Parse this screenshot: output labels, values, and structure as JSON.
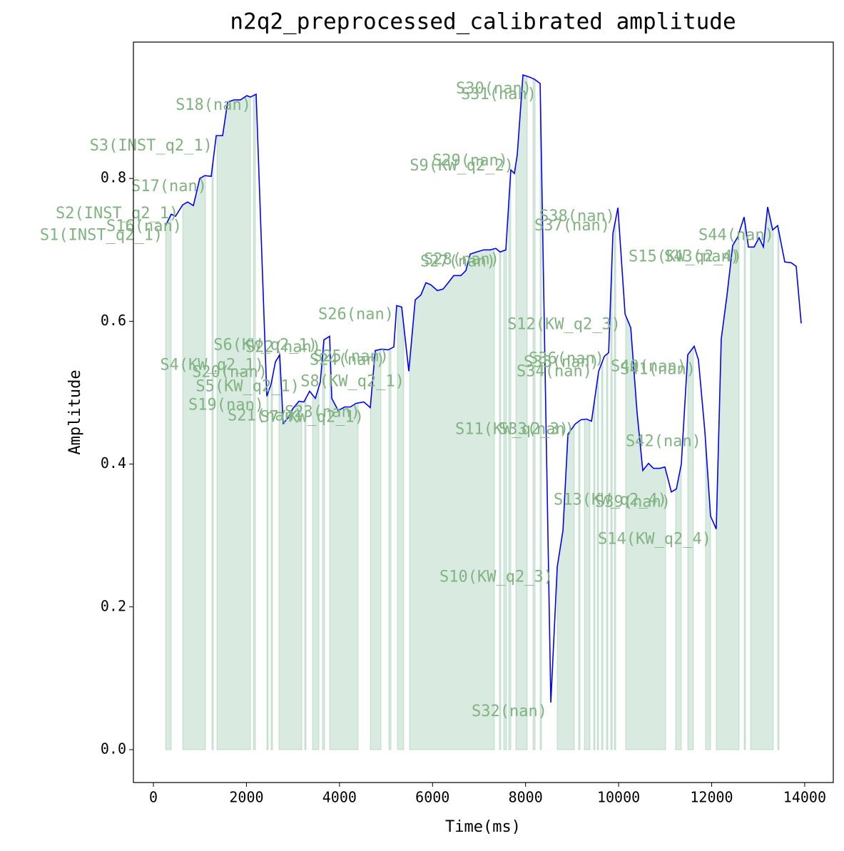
{
  "chart_data": {
    "type": "line",
    "title": "n2q2_preprocessed_calibrated amplitude",
    "x_label": "Time(ms)",
    "y_label": "Amplitude",
    "color": "#0000ff",
    "span_color": "#2e8b57",
    "annotation_color": "#80b380",
    "xlim": [
      -430,
      14615
    ],
    "ylim": [
      -0.046,
      0.991
    ],
    "xticks": [
      0,
      2000,
      4000,
      6000,
      8000,
      10000,
      12000,
      14000
    ],
    "yticks": [
      {
        "value": 0,
        "label": "0.0"
      },
      0.2,
      0.4,
      0.6,
      0.8
    ],
    "x": [
      261,
      383,
      475,
      629,
      736,
      859,
      997,
      1104,
      1242,
      1350,
      1488,
      1595,
      1733,
      1871,
      2009,
      2086,
      2208,
      2438,
      2530,
      2622,
      2714,
      2791,
      2898,
      2990,
      3128,
      3235,
      3358,
      3481,
      3588,
      3665,
      3788,
      3834,
      3972,
      4110,
      4233,
      4355,
      4524,
      4662,
      4769,
      4907,
      5045,
      5168,
      5229,
      5337,
      5490,
      5628,
      5751,
      5858,
      5965,
      6103,
      6226,
      6349,
      6456,
      6609,
      6717,
      6809,
      6947,
      7100,
      7238,
      7361,
      7453,
      7576,
      7683,
      7760,
      7821,
      7944,
      8082,
      8190,
      8313,
      8543,
      8681,
      8804,
      8911,
      9065,
      9188,
      9310,
      9418,
      9571,
      9694,
      9786,
      9878,
      9985,
      10139,
      10261,
      10397,
      10520,
      10643,
      10750,
      10888,
      10995,
      11133,
      11241,
      11348,
      11486,
      11624,
      11716,
      11854,
      11977,
      12099,
      12206,
      12329,
      12452,
      12560,
      12698,
      12790,
      12912,
      13020,
      13112,
      13204,
      13311,
      13419,
      13572,
      13710,
      13817,
      13925
    ],
    "values": [
      0.734,
      0.75,
      0.747,
      0.763,
      0.767,
      0.762,
      0.8,
      0.804,
      0.803,
      0.86,
      0.86,
      0.907,
      0.91,
      0.91,
      0.916,
      0.914,
      0.918,
      0.495,
      0.512,
      0.543,
      0.553,
      0.457,
      0.465,
      0.477,
      0.488,
      0.487,
      0.502,
      0.492,
      0.515,
      0.574,
      0.579,
      0.492,
      0.475,
      0.48,
      0.48,
      0.485,
      0.487,
      0.479,
      0.559,
      0.561,
      0.56,
      0.564,
      0.622,
      0.62,
      0.53,
      0.63,
      0.637,
      0.654,
      0.651,
      0.643,
      0.645,
      0.655,
      0.664,
      0.664,
      0.671,
      0.694,
      0.697,
      0.7,
      0.7,
      0.702,
      0.697,
      0.7,
      0.812,
      0.807,
      0.833,
      0.945,
      0.942,
      0.939,
      0.933,
      0.066,
      0.256,
      0.307,
      0.442,
      0.456,
      0.462,
      0.463,
      0.46,
      0.53,
      0.551,
      0.556,
      0.723,
      0.759,
      0.61,
      0.591,
      0.472,
      0.391,
      0.401,
      0.394,
      0.394,
      0.396,
      0.361,
      0.365,
      0.4,
      0.553,
      0.565,
      0.546,
      0.446,
      0.327,
      0.309,
      0.575,
      0.636,
      0.706,
      0.718,
      0.746,
      0.704,
      0.704,
      0.717,
      0.704,
      0.76,
      0.728,
      0.734,
      0.683,
      0.682,
      0.677,
      0.597
    ],
    "spans": [
      [
        261,
        383
      ],
      [
        629,
        1119
      ],
      [
        1257,
        1288
      ],
      [
        1365,
        2086
      ],
      [
        2147,
        2193
      ],
      [
        2438,
        2469
      ],
      [
        2530,
        2561
      ],
      [
        2699,
        3190
      ],
      [
        3251,
        3282
      ],
      [
        3420,
        3558
      ],
      [
        3634,
        3680
      ],
      [
        3788,
        4401
      ],
      [
        4662,
        4892
      ],
      [
        5060,
        5107
      ],
      [
        5245,
        5383
      ],
      [
        5505,
        7330
      ],
      [
        7438,
        7468
      ],
      [
        7530,
        7591
      ],
      [
        7637,
        7683
      ],
      [
        7790,
        8036
      ],
      [
        8159,
        8205
      ],
      [
        8312,
        8342
      ],
      [
        8680,
        9048
      ],
      [
        9140,
        9170
      ],
      [
        9263,
        9386
      ],
      [
        9463,
        9493
      ],
      [
        9540,
        9570
      ],
      [
        9632,
        9663
      ],
      [
        9739,
        9770
      ],
      [
        9831,
        9862
      ],
      [
        9908,
        9939
      ],
      [
        10152,
        11011
      ],
      [
        11225,
        11348
      ],
      [
        11486,
        11608
      ],
      [
        11869,
        11977
      ],
      [
        12099,
        12590
      ],
      [
        12698,
        12729
      ],
      [
        12835,
        13326
      ],
      [
        13419,
        13449
      ]
    ],
    "annotations": [
      {
        "text": "S1(INST_q2_1)",
        "x": 200,
        "y": 0.72
      },
      {
        "text": "S2(INST_q2_1)",
        "x": 540,
        "y": 0.75
      },
      {
        "text": "S3(INST_q2_1)",
        "x": 1270,
        "y": 0.845
      },
      {
        "text": "S4(KW_q2_1)",
        "x": 2377,
        "y": 0.538
      },
      {
        "text": "S5(KW_q2_1)",
        "x": 3144,
        "y": 0.508
      },
      {
        "text": "S6(KW_q2_1)",
        "x": 3527,
        "y": 0.566
      },
      {
        "text": "S7(KW_q2_1)",
        "x": 4524,
        "y": 0.465
      },
      {
        "text": "S8(KW_q2_1)",
        "x": 5398,
        "y": 0.515
      },
      {
        "text": "S9(KW_q2_2)",
        "x": 7744,
        "y": 0.817
      },
      {
        "text": "S10(KW_q2_3)",
        "x": 8588,
        "y": 0.241
      },
      {
        "text": "S11(KW_q2_3)",
        "x": 8925,
        "y": 0.448
      },
      {
        "text": "S12(KW_q2_3)",
        "x": 10044,
        "y": 0.595
      },
      {
        "text": "S13(KW_q2_4)",
        "x": 11041,
        "y": 0.349
      },
      {
        "text": "S14(KW_q2_4)",
        "x": 11992,
        "y": 0.294
      },
      {
        "text": "S15(KW_q2_4)",
        "x": 12651,
        "y": 0.69
      },
      {
        "text": "S16(nan)",
        "x": 613,
        "y": 0.732
      },
      {
        "text": "S17(nan)",
        "x": 1150,
        "y": 0.788
      },
      {
        "text": "S18(nan)",
        "x": 2101,
        "y": 0.902
      },
      {
        "text": "S19(nan)",
        "x": 2377,
        "y": 0.482
      },
      {
        "text": "S20(nan)",
        "x": 2454,
        "y": 0.528
      },
      {
        "text": "S21(nan)",
        "x": 3220,
        "y": 0.467
      },
      {
        "text": "S22(nan)",
        "x": 3604,
        "y": 0.563
      },
      {
        "text": "S23(nan)",
        "x": 4447,
        "y": 0.472
      },
      {
        "text": "S24(nan)",
        "x": 4984,
        "y": 0.545
      },
      {
        "text": "S25(nan)",
        "x": 5060,
        "y": 0.55
      },
      {
        "text": "S26(nan)",
        "x": 5168,
        "y": 0.609
      },
      {
        "text": "S27(nan)",
        "x": 7361,
        "y": 0.683
      },
      {
        "text": "S28(nan)",
        "x": 7438,
        "y": 0.686
      },
      {
        "text": "S29(nan)",
        "x": 7621,
        "y": 0.824
      },
      {
        "text": "S30(nan)",
        "x": 8128,
        "y": 0.925
      },
      {
        "text": "S31(nan)",
        "x": 8235,
        "y": 0.917
      },
      {
        "text": "S32(nan)",
        "x": 8465,
        "y": 0.053
      },
      {
        "text": "S33(nan)",
        "x": 9048,
        "y": 0.448
      },
      {
        "text": "S34(nan)",
        "x": 9431,
        "y": 0.529
      },
      {
        "text": "S35(nan)",
        "x": 9584,
        "y": 0.542
      },
      {
        "text": "S36(nan)",
        "x": 9692,
        "y": 0.547
      },
      {
        "text": "S37(nan)",
        "x": 9814,
        "y": 0.733
      },
      {
        "text": "S38(nan)",
        "x": 9922,
        "y": 0.746
      },
      {
        "text": "S39(nan)",
        "x": 11118,
        "y": 0.346
      },
      {
        "text": "S40(nan)",
        "x": 11455,
        "y": 0.536
      },
      {
        "text": "S41(nan)",
        "x": 11655,
        "y": 0.532
      },
      {
        "text": "S42(nan)",
        "x": 11777,
        "y": 0.431
      },
      {
        "text": "S43(nan)",
        "x": 12605,
        "y": 0.69
      },
      {
        "text": "S44(nan)",
        "x": 13341,
        "y": 0.72
      }
    ]
  }
}
